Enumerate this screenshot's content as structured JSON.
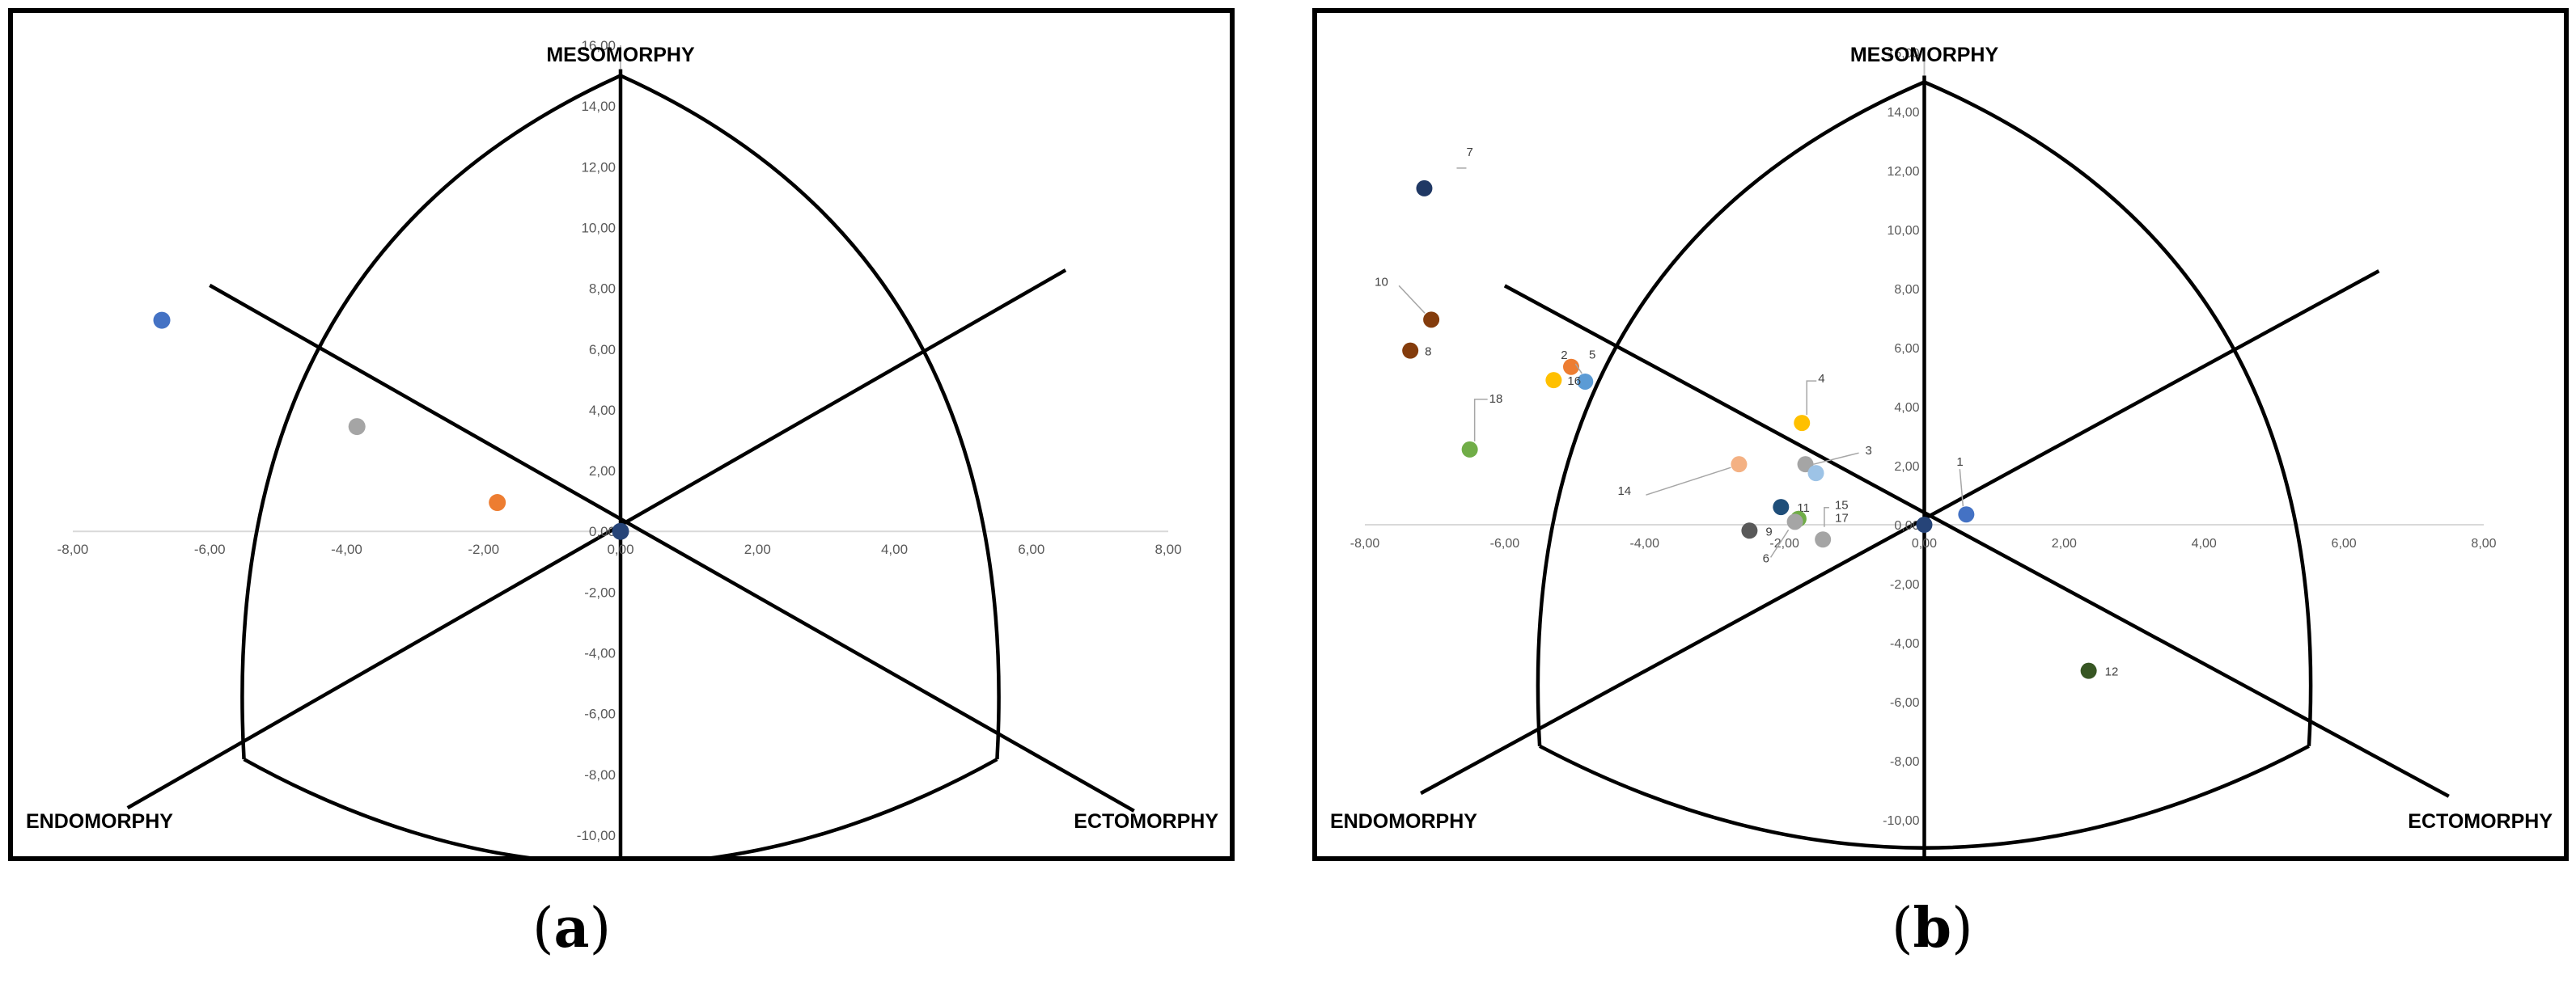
{
  "chart_data": [
    {
      "type": "scatter",
      "xlim": [
        -8,
        8
      ],
      "ylim": [
        -10,
        16
      ],
      "x_ticks": [
        "-8,00",
        "-6,00",
        "-4,00",
        "-2,00",
        "0,00",
        "2,00",
        "4,00",
        "6,00",
        "8,00"
      ],
      "y_ticks": [
        "-10,00",
        "-8,00",
        "-6,00",
        "-4,00",
        "-2,00",
        "0,00",
        "2,00",
        "4,00",
        "6,00",
        "8,00",
        "10,00",
        "12,00",
        "14,00",
        "16,00"
      ],
      "y_tick_values": [
        -10,
        -8,
        -6,
        -4,
        -2,
        0,
        2,
        4,
        6,
        8,
        10,
        12,
        14,
        16
      ],
      "x_tick_values": [
        -8,
        -6,
        -4,
        -2,
        0,
        2,
        4,
        6,
        8
      ],
      "corner_labels": {
        "top": "MESOMORPHY",
        "left": "ENDOMORPHY",
        "right": "ECTOMORPHY"
      },
      "points": [
        {
          "x": -6.7,
          "y": 6.95,
          "color": "#4472c4"
        },
        {
          "x": -3.85,
          "y": 3.45,
          "color": "#a5a5a5"
        },
        {
          "x": -1.8,
          "y": 0.95,
          "color": "#ed7d31"
        },
        {
          "x": 0.0,
          "y": 0.0,
          "color": "#264478"
        }
      ]
    },
    {
      "type": "scatter",
      "xlim": [
        -8,
        8
      ],
      "ylim": [
        -10,
        16
      ],
      "x_ticks": [
        "-8,00",
        "-6,00",
        "-4,00",
        "-2,00",
        "0,00",
        "2,00",
        "4,00",
        "6,00",
        "8,00"
      ],
      "y_ticks": [
        "-10,00",
        "-8,00",
        "-6,00",
        "-4,00",
        "-2,00",
        "0,00",
        "2,00",
        "4,00",
        "6,00",
        "8,00",
        "10,00",
        "12,00",
        "14,00",
        "16,00"
      ],
      "y_tick_values": [
        -10,
        -8,
        -6,
        -4,
        -2,
        0,
        2,
        4,
        6,
        8,
        10,
        12,
        14,
        16
      ],
      "x_tick_values": [
        -8,
        -6,
        -4,
        -2,
        0,
        2,
        4,
        6,
        8
      ],
      "corner_labels": {
        "top": "MESOMORPHY",
        "left": "ENDOMORPHY",
        "right": "ECTOMORPHY"
      },
      "points": [
        {
          "label": "7",
          "x": -7.15,
          "y": 11.4,
          "color": "#203864"
        },
        {
          "label": "10",
          "x": -7.05,
          "y": 6.95,
          "color": "#843c0c"
        },
        {
          "label": "8",
          "x": -7.35,
          "y": 5.9,
          "color": "#843c0c"
        },
        {
          "label": "5",
          "x": -5.05,
          "y": 5.35,
          "color": "#ed7d31"
        },
        {
          "label": "2",
          "x": -4.85,
          "y": 4.85,
          "color": "#5b9bd5"
        },
        {
          "label": "16",
          "x": -5.3,
          "y": 4.9,
          "color": "#ffc000"
        },
        {
          "label": "18",
          "x": -6.5,
          "y": 2.55,
          "color": "#70ad47"
        },
        {
          "label": "4",
          "x": -1.75,
          "y": 3.45,
          "color": "#ffc000"
        },
        {
          "label": "14",
          "x": -2.65,
          "y": 2.05,
          "color": "#f4b183"
        },
        {
          "label": "3",
          "x": -1.7,
          "y": 2.05,
          "color": "#a5a5a5"
        },
        {
          "label": "",
          "x": -1.55,
          "y": 1.75,
          "color": "#9dc3e6"
        },
        {
          "label": "11",
          "x": -2.05,
          "y": 0.6,
          "color": "#1f4e79"
        },
        {
          "label": "15",
          "x": -1.8,
          "y": 0.2,
          "color": "#70ad47"
        },
        {
          "label": "17",
          "x": -1.45,
          "y": -0.5,
          "color": "#a5a5a5"
        },
        {
          "label": "9",
          "x": -2.5,
          "y": -0.2,
          "color": "#595959"
        },
        {
          "label": "6",
          "x": -1.85,
          "y": 0.1,
          "color": "#a5a5a5"
        },
        {
          "label": "1",
          "x": 0.6,
          "y": 0.35,
          "color": "#4472c4"
        },
        {
          "label": "12",
          "x": 2.35,
          "y": -4.95,
          "color": "#375623"
        },
        {
          "label": "",
          "x": 0.0,
          "y": 0.0,
          "color": "#264478"
        }
      ]
    }
  ],
  "captions": {
    "a": "a",
    "b": "b"
  }
}
